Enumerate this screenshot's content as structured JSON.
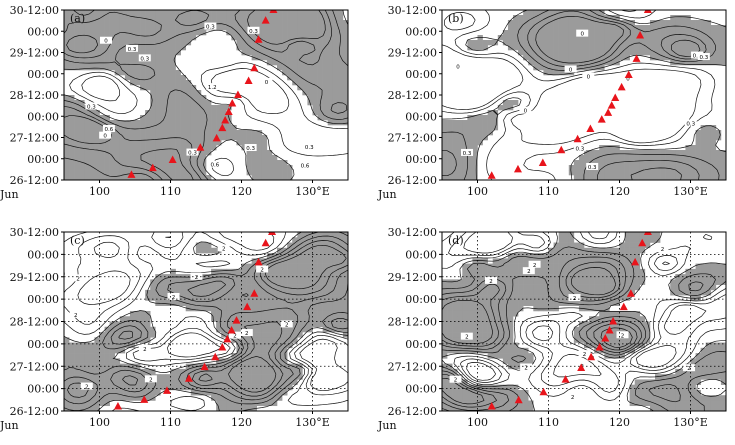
{
  "chart_data": [
    {
      "type": "heatmap",
      "panel_label": "(a)",
      "x_ticks": [
        "100",
        "110",
        "120",
        "130°E"
      ],
      "y_ticks": [
        "30-12:00",
        "00:00",
        "29-12:00",
        "00:00",
        "28-12:00",
        "00:00",
        "27-12:00",
        "00:00",
        "26-12:00"
      ],
      "y_sub": "Jun",
      "xlim": [
        95,
        135
      ],
      "y_range": [
        "26-12:00",
        "30-12:00"
      ],
      "grid": false,
      "track": [
        {
          "x": 104.5,
          "y": 26.62
        },
        {
          "x": 107.5,
          "y": 26.78
        },
        {
          "x": 110.3,
          "y": 26.97
        },
        {
          "x": 114.2,
          "y": 27.26
        },
        {
          "x": 116.5,
          "y": 27.48
        },
        {
          "x": 117.3,
          "y": 27.72
        },
        {
          "x": 117.7,
          "y": 27.9
        },
        {
          "x": 118.2,
          "y": 28.1
        },
        {
          "x": 118.7,
          "y": 28.3
        },
        {
          "x": 119.5,
          "y": 28.5
        },
        {
          "x": 121.0,
          "y": 28.83
        },
        {
          "x": 121.8,
          "y": 29.13
        },
        {
          "x": 122.4,
          "y": 29.8
        },
        {
          "x": 123.4,
          "y": 30.25
        },
        {
          "x": 124.5,
          "y": 30.5
        }
      ],
      "contour_labels": [
        "0.3",
        "0.6",
        "0.3",
        "0",
        "0.3",
        "0.3",
        "0.3",
        "0",
        "0.6",
        "0.3",
        "1.2",
        "0",
        "0.3",
        "0.6",
        "0.3"
      ]
    },
    {
      "type": "heatmap",
      "panel_label": "(b)",
      "x_ticks": [
        "100",
        "110",
        "120",
        "130°E"
      ],
      "y_ticks": [
        "30-12:00",
        "00:00",
        "29-12:00",
        "00:00",
        "28-12:00",
        "00:00",
        "27-12:00",
        "00:00",
        "26-12:00"
      ],
      "y_sub": "Jun",
      "xlim": [
        95,
        135
      ],
      "y_range": [
        "26-12:00",
        "30-12:00"
      ],
      "grid": false,
      "track": [
        {
          "x": 102.0,
          "y": 26.6
        },
        {
          "x": 105.7,
          "y": 26.75
        },
        {
          "x": 109.2,
          "y": 26.9
        },
        {
          "x": 111.8,
          "y": 27.2
        },
        {
          "x": 114.1,
          "y": 27.46
        },
        {
          "x": 115.9,
          "y": 27.7
        },
        {
          "x": 117.5,
          "y": 27.92
        },
        {
          "x": 118.4,
          "y": 28.08
        },
        {
          "x": 118.9,
          "y": 28.25
        },
        {
          "x": 119.4,
          "y": 28.43
        },
        {
          "x": 120.3,
          "y": 28.68
        },
        {
          "x": 121.3,
          "y": 28.97
        },
        {
          "x": 122.4,
          "y": 29.35
        },
        {
          "x": 122.9,
          "y": 29.9
        },
        {
          "x": 124.0,
          "y": 30.5
        }
      ],
      "contour_labels": [
        "0",
        "0.3",
        "0",
        "0.3",
        "0",
        "0.3",
        "0",
        "0.3",
        "0",
        "0.3",
        "0",
        "0.3"
      ]
    },
    {
      "type": "heatmap",
      "panel_label": "(c)",
      "x_ticks": [
        "100",
        "110",
        "120",
        "130°E"
      ],
      "y_ticks": [
        "30-12:00",
        "00:00",
        "29-12:00",
        "00:00",
        "28-12:00",
        "00:00",
        "27-12:00",
        "00:00",
        "26-12:00"
      ],
      "y_sub": "Jun",
      "xlim": [
        95,
        135
      ],
      "y_range": [
        "26-12:00",
        "30-12:00"
      ],
      "grid": true,
      "track": [
        {
          "x": 102.6,
          "y": 26.6
        },
        {
          "x": 106.3,
          "y": 26.75
        },
        {
          "x": 109.5,
          "y": 26.95
        },
        {
          "x": 112.6,
          "y": 27.22
        },
        {
          "x": 114.8,
          "y": 27.48
        },
        {
          "x": 116.3,
          "y": 27.7
        },
        {
          "x": 117.3,
          "y": 27.92
        },
        {
          "x": 118.0,
          "y": 28.1
        },
        {
          "x": 118.6,
          "y": 28.3
        },
        {
          "x": 119.3,
          "y": 28.52
        },
        {
          "x": 120.8,
          "y": 28.82
        },
        {
          "x": 121.8,
          "y": 29.12
        },
        {
          "x": 122.4,
          "y": 29.82
        },
        {
          "x": 123.4,
          "y": 30.25
        },
        {
          "x": 124.3,
          "y": 30.5
        }
      ],
      "contour_labels": [
        "2",
        "2",
        "2",
        "2",
        "2",
        "2",
        "2",
        "2",
        "2",
        "2",
        "2",
        "2"
      ]
    },
    {
      "type": "heatmap",
      "panel_label": "(d)",
      "x_ticks": [
        "100",
        "110",
        "120",
        "130°E"
      ],
      "y_ticks": [
        "30-12:00",
        "00:00",
        "29-12:00",
        "00:00",
        "28-12:00",
        "00:00",
        "27-12:00",
        "00:00",
        "26-12:00"
      ],
      "y_sub": "Jun",
      "xlim": [
        95,
        135
      ],
      "y_range": [
        "26-12:00",
        "30-12:00"
      ],
      "grid": true,
      "track": [
        {
          "x": 102.0,
          "y": 26.6
        },
        {
          "x": 105.8,
          "y": 26.74
        },
        {
          "x": 109.3,
          "y": 26.92
        },
        {
          "x": 112.4,
          "y": 27.2
        },
        {
          "x": 114.6,
          "y": 27.46
        },
        {
          "x": 116.0,
          "y": 27.7
        },
        {
          "x": 117.2,
          "y": 27.92
        },
        {
          "x": 118.0,
          "y": 28.12
        },
        {
          "x": 118.6,
          "y": 28.3
        },
        {
          "x": 119.1,
          "y": 28.5
        },
        {
          "x": 120.6,
          "y": 28.82
        },
        {
          "x": 121.6,
          "y": 29.12
        },
        {
          "x": 122.2,
          "y": 29.82
        },
        {
          "x": 123.2,
          "y": 30.25
        },
        {
          "x": 124.0,
          "y": 30.5
        }
      ],
      "contour_labels": [
        "2",
        "2",
        "2",
        "2",
        "2",
        "2",
        "2",
        "2",
        "2",
        "2",
        "2",
        "2",
        "2",
        "2"
      ]
    }
  ]
}
